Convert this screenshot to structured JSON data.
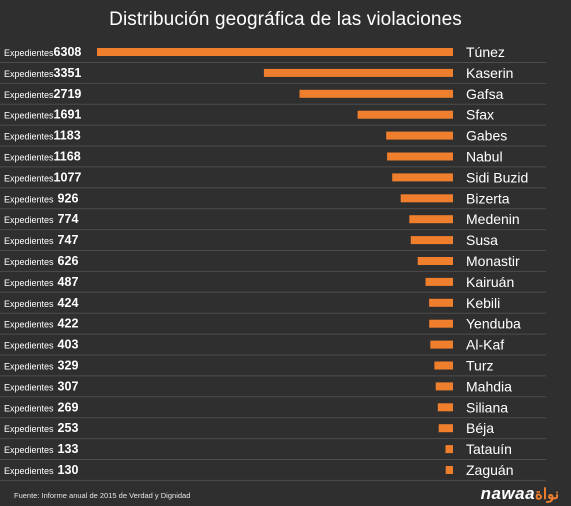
{
  "chart_data": {
    "type": "bar",
    "orientation": "horizontal",
    "title": "Distribución geográfica de las violaciones",
    "value_prefix": "Expedientes",
    "categories": [
      "Túnez",
      "Kaserin",
      "Gafsa",
      "Sfax",
      "Gabes",
      "Nabul",
      "Sidi Buzid",
      "Bizerta",
      "Medenin",
      "Susa",
      "Monastir",
      "Kairuán",
      "Kebili",
      "Yenduba",
      "Al-Kaf",
      "Turz",
      "Mahdia",
      "Siliana",
      "Béja",
      "Tatauín",
      "Zaguán"
    ],
    "values": [
      6308,
      3351,
      2719,
      1691,
      1183,
      1168,
      1077,
      926,
      774,
      747,
      626,
      487,
      424,
      422,
      403,
      329,
      307,
      269,
      253,
      133,
      130
    ],
    "bar_color": "#f07f2d",
    "grid": true,
    "legend": "none"
  },
  "footer": {
    "source": "Fuente: Informe anual de 2015 de Verdad y Dignidad",
    "brand": "nawaat",
    "brand_main": "nawaa",
    "brand_accent": "نواة"
  }
}
